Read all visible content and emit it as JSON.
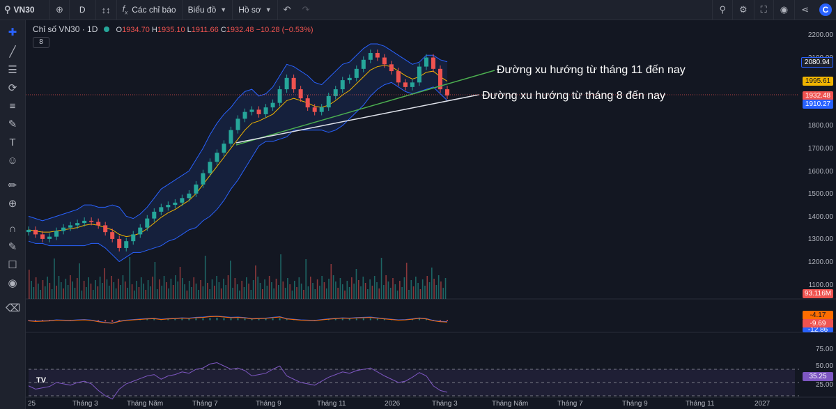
{
  "toolbar": {
    "symbol": "VN30",
    "interval": "D",
    "indicators_label": "Các chỉ báo",
    "chart_label": "Biểu đồ",
    "profile_label": "Hồ sơ"
  },
  "legend": {
    "title": "Chỉ số VN30 · 1D",
    "o_label": "O",
    "o": "1934.70",
    "h_label": "H",
    "h": "1935.10",
    "l_label": "L",
    "l": "1911.66",
    "c_label": "C",
    "c": "1932.48",
    "change": "−10.28 (−0.53%)",
    "bb_length": "8"
  },
  "annotations": {
    "trend_nov": "Đường xu hướng từ tháng 11 đến nay",
    "trend_aug": "Đường xu hướng từ tháng 8 đến nay"
  },
  "price_axis": [
    "2200.00",
    "2100.00",
    "2000.00",
    "1900.00",
    "1800.00",
    "1700.00",
    "1600.00",
    "1500.00",
    "1400.00",
    "1300.00",
    "1200.00",
    "1100.00"
  ],
  "price_tags": {
    "bb_upper": "2080.94",
    "bb_mid": "1995.61",
    "close": "1932.48",
    "bb_lower": "1910.27",
    "volume": "93.116M"
  },
  "macd_tags": {
    "macd": "-4.17",
    "signal": "-9.69",
    "hist": "-12.86"
  },
  "rsi_axis": [
    "75.00",
    "50.00",
    "25.00"
  ],
  "rsi_tag": "35.25",
  "time_axis": [
    "25",
    "Tháng 3",
    "Tháng Năm",
    "Tháng 7",
    "Tháng 9",
    "Tháng 11",
    "2026",
    "Tháng 3",
    "Tháng Năm",
    "Tháng 7",
    "Tháng 9",
    "Tháng 11",
    "2027"
  ],
  "colors": {
    "up": "#26a69a",
    "down": "#ef5350",
    "bb": "#2962ff",
    "mid": "#f0b400",
    "rsi": "#7e57c2",
    "trend_green": "#4caf50",
    "trend_white": "#e0e3eb"
  },
  "chart_data": {
    "type": "candlestick",
    "title": "Chỉ số VN30 · 1D",
    "ylim": [
      1100,
      2200
    ],
    "close_series": [
      1340,
      1320,
      1300,
      1310,
      1335,
      1350,
      1360,
      1370,
      1380,
      1375,
      1360,
      1330,
      1300,
      1260,
      1290,
      1320,
      1350,
      1390,
      1420,
      1440,
      1450,
      1460,
      1480,
      1500,
      1540,
      1590,
      1640,
      1680,
      1720,
      1780,
      1830,
      1860,
      1870,
      1850,
      1880,
      1900,
      1960,
      2010,
      1960,
      1920,
      1880,
      1860,
      1880,
      1930,
      1960,
      2000,
      2010,
      2050,
      2090,
      2120,
      2100,
      2070,
      2040,
      1990,
      1970,
      1990,
      2060,
      2100,
      2050,
      1960,
      1932.48
    ],
    "bb_upper": [
      1400,
      1390,
      1380,
      1390,
      1400,
      1410,
      1420,
      1430,
      1450,
      1450,
      1440,
      1440,
      1450,
      1440,
      1400,
      1390,
      1410,
      1440,
      1480,
      1520,
      1540,
      1560,
      1580,
      1600,
      1650,
      1700,
      1760,
      1810,
      1850,
      1880,
      1920,
      1950,
      1960,
      1930,
      1940,
      1970,
      2020,
      2070,
      2060,
      2040,
      2020,
      1990,
      1980,
      2010,
      2040,
      2070,
      2080,
      2110,
      2140,
      2160,
      2160,
      2150,
      2130,
      2110,
      2090,
      2070,
      2080,
      2110,
      2110,
      2090,
      2080.94
    ],
    "bb_mid": [
      1340,
      1335,
      1330,
      1330,
      1335,
      1340,
      1345,
      1350,
      1360,
      1365,
      1360,
      1350,
      1340,
      1320,
      1310,
      1315,
      1325,
      1345,
      1370,
      1395,
      1415,
      1430,
      1450,
      1470,
      1500,
      1540,
      1580,
      1620,
      1660,
      1700,
      1740,
      1780,
      1810,
      1820,
      1835,
      1850,
      1880,
      1910,
      1920,
      1910,
      1900,
      1885,
      1880,
      1890,
      1910,
      1935,
      1955,
      1985,
      2015,
      2045,
      2060,
      2065,
      2060,
      2040,
      2020,
      2005,
      2015,
      2035,
      2040,
      2015,
      1995.61
    ],
    "bb_lower": [
      1290,
      1280,
      1280,
      1270,
      1270,
      1270,
      1270,
      1270,
      1270,
      1280,
      1280,
      1260,
      1230,
      1200,
      1220,
      1240,
      1240,
      1250,
      1260,
      1270,
      1290,
      1300,
      1320,
      1340,
      1350,
      1380,
      1400,
      1430,
      1470,
      1520,
      1560,
      1610,
      1660,
      1710,
      1730,
      1730,
      1740,
      1750,
      1780,
      1780,
      1780,
      1780,
      1780,
      1770,
      1780,
      1800,
      1830,
      1860,
      1890,
      1930,
      1960,
      1980,
      1990,
      1970,
      1950,
      1940,
      1950,
      1960,
      1970,
      1940,
      1910.27
    ],
    "rsi": [
      45,
      40,
      42,
      44,
      50,
      48,
      46,
      50,
      52,
      48,
      38,
      30,
      25,
      40,
      48,
      52,
      56,
      60,
      62,
      55,
      60,
      62,
      66,
      64,
      70,
      72,
      78,
      80,
      75,
      70,
      72,
      68,
      60,
      62,
      64,
      70,
      75,
      60,
      55,
      50,
      48,
      46,
      52,
      58,
      62,
      66,
      64,
      68,
      70,
      72,
      66,
      60,
      55,
      50,
      52,
      58,
      65,
      60,
      45,
      38,
      35.25
    ]
  }
}
